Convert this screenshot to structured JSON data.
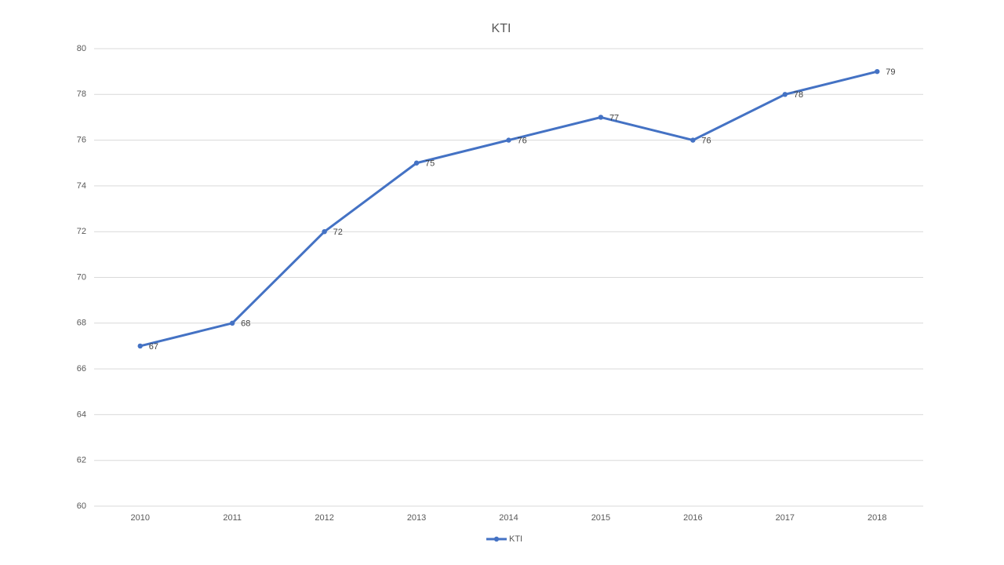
{
  "chart_data": {
    "type": "line",
    "title": "KTI",
    "categories": [
      "2010",
      "2011",
      "2012",
      "2013",
      "2014",
      "2015",
      "2016",
      "2017",
      "2018"
    ],
    "series": [
      {
        "name": "KTI",
        "color": "#4472c4",
        "values": [
          67,
          68,
          72,
          75,
          76,
          77,
          76,
          78,
          79
        ]
      }
    ],
    "ylim": [
      60,
      80
    ],
    "yticks": [
      60,
      62,
      64,
      66,
      68,
      70,
      72,
      74,
      76,
      78,
      80
    ],
    "grid": true,
    "legend": "bottom",
    "data_labels": true
  }
}
